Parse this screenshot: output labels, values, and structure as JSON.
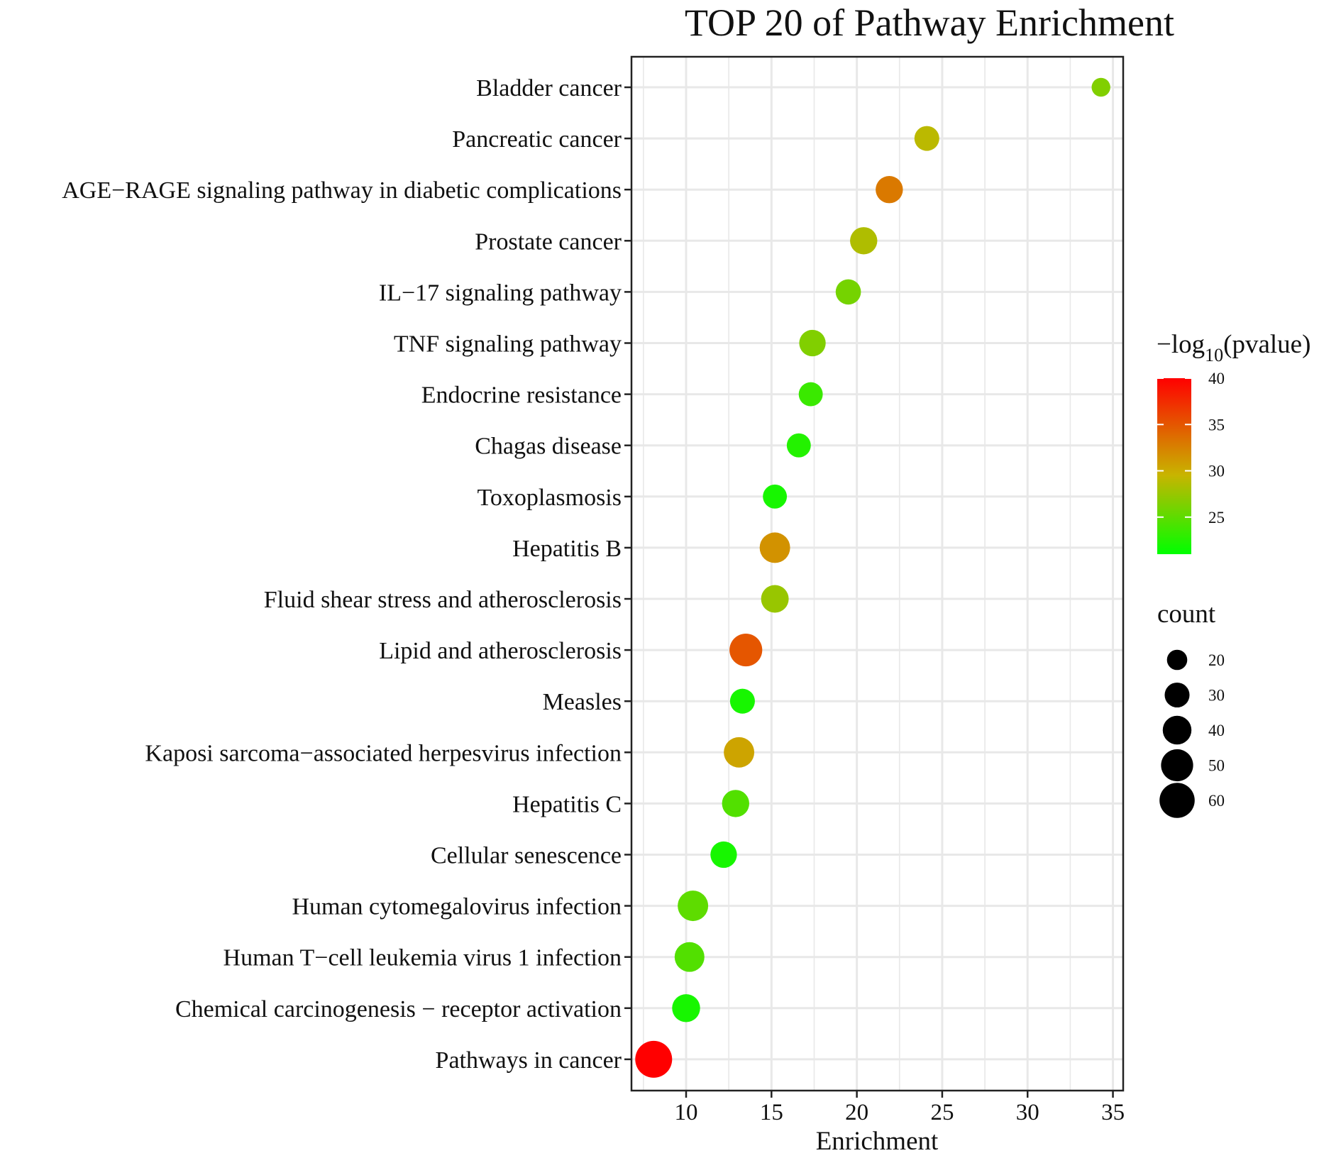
{
  "chart_data": {
    "type": "scatter",
    "title": "TOP 20 of Pathway Enrichment",
    "xlabel": "Enrichment",
    "ylabel": "",
    "xlim": [
      6.8,
      35.6
    ],
    "xticks": [
      10,
      15,
      20,
      25,
      30,
      35
    ],
    "grid": true,
    "color_legend": {
      "title_prefix": "−log",
      "title_sub": "10",
      "title_suffix": "(pvalue)",
      "range": [
        21,
        40
      ],
      "ticks": [
        25,
        30,
        35,
        40
      ],
      "low_color": "#00ff00",
      "mid_color": "#c8b400",
      "high_color": "#ff0000"
    },
    "size_legend": {
      "title": "count",
      "ticks": [
        20,
        30,
        40,
        50,
        60
      ]
    },
    "points": [
      {
        "pathway": "Bladder cancer",
        "enrichment": 34.3,
        "neg_log10_p": 26.5,
        "count": 17
      },
      {
        "pathway": "Pancreatic cancer",
        "enrichment": 24.1,
        "neg_log10_p": 29.0,
        "count": 30
      },
      {
        "pathway": "AGE−RAGE signaling pathway in diabetic complications",
        "enrichment": 21.9,
        "neg_log10_p": 33.0,
        "count": 36
      },
      {
        "pathway": "Prostate cancer",
        "enrichment": 20.4,
        "neg_log10_p": 28.5,
        "count": 36
      },
      {
        "pathway": "IL−17 signaling pathway",
        "enrichment": 19.5,
        "neg_log10_p": 26.0,
        "count": 31
      },
      {
        "pathway": "TNF signaling pathway",
        "enrichment": 17.4,
        "neg_log10_p": 26.5,
        "count": 34
      },
      {
        "pathway": "Endocrine resistance",
        "enrichment": 17.3,
        "neg_log10_p": 23.5,
        "count": 28
      },
      {
        "pathway": "Chagas disease",
        "enrichment": 16.6,
        "neg_log10_p": 22.5,
        "count": 28
      },
      {
        "pathway": "Toxoplasmosis",
        "enrichment": 15.2,
        "neg_log10_p": 22.0,
        "count": 28
      },
      {
        "pathway": "Hepatitis B",
        "enrichment": 15.2,
        "neg_log10_p": 31.5,
        "count": 45
      },
      {
        "pathway": "Fluid shear stress and atherosclerosis",
        "enrichment": 15.2,
        "neg_log10_p": 27.5,
        "count": 37
      },
      {
        "pathway": "Lipid and atherosclerosis",
        "enrichment": 13.5,
        "neg_log10_p": 35.0,
        "count": 52
      },
      {
        "pathway": "Measles",
        "enrichment": 13.3,
        "neg_log10_p": 22.0,
        "count": 30
      },
      {
        "pathway": "Kaposi sarcoma−associated herpesvirus infection",
        "enrichment": 13.1,
        "neg_log10_p": 30.5,
        "count": 45
      },
      {
        "pathway": "Hepatitis C",
        "enrichment": 12.9,
        "neg_log10_p": 24.5,
        "count": 36
      },
      {
        "pathway": "Cellular senescence",
        "enrichment": 12.2,
        "neg_log10_p": 22.0,
        "count": 34
      },
      {
        "pathway": "Human cytomegalovirus infection",
        "enrichment": 10.4,
        "neg_log10_p": 25.0,
        "count": 45
      },
      {
        "pathway": "Human T−cell leukemia virus 1 infection",
        "enrichment": 10.2,
        "neg_log10_p": 24.5,
        "count": 43
      },
      {
        "pathway": "Chemical carcinogenesis − receptor activation",
        "enrichment": 10.0,
        "neg_log10_p": 22.0,
        "count": 38
      },
      {
        "pathway": "Pathways in cancer",
        "enrichment": 8.1,
        "neg_log10_p": 40.0,
        "count": 66
      }
    ]
  }
}
